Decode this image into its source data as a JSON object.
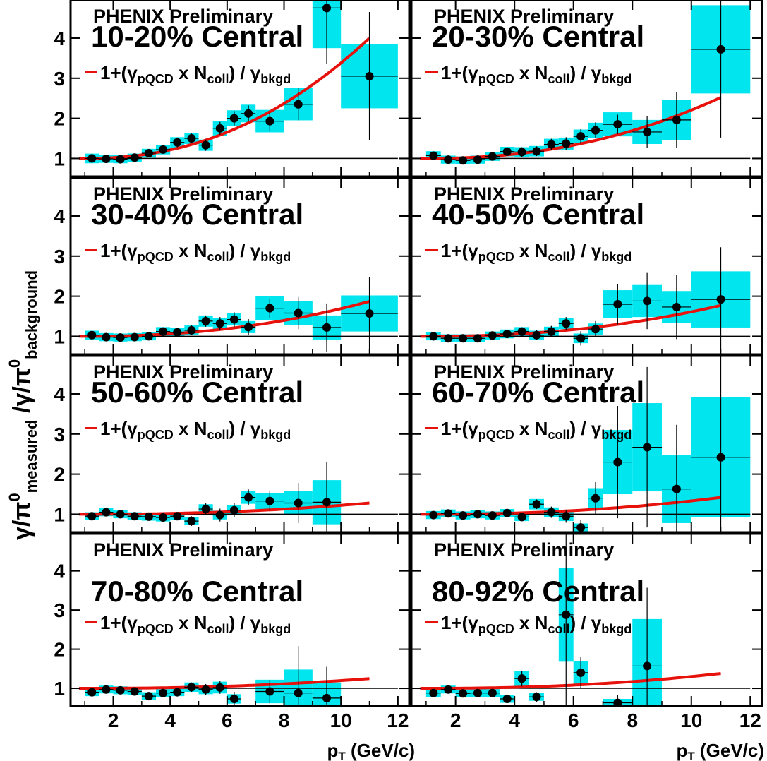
{
  "colors": {
    "syst_box": "#00e5ee",
    "curve": "#e8120c",
    "points": "#000000",
    "axis": "#000000"
  },
  "chart_data": {
    "type": "scatter",
    "layout": "grid 4 rows x 2 columns, shared axes",
    "ylabel": "γ/π⁰ measured / γ/π⁰ background",
    "xlabel": "p_T (GeV/c)",
    "xlim": [
      0.5,
      12.4
    ],
    "ylim": [
      0.55,
      4.95
    ],
    "xticks": [
      2,
      4,
      6,
      8,
      10,
      12
    ],
    "yticks": [
      1,
      2,
      3,
      4
    ],
    "reference_line": 1,
    "panel_header": "PHENIX Preliminary",
    "legend_label": "1+(γpQCD x Ncoll) / γbkgd",
    "panels": [
      {
        "centrality": "10-20% Central",
        "fit_at_11": 4.0,
        "points": [
          [
            1.25,
            1.0,
            0.05,
            0.12
          ],
          [
            1.75,
            0.99,
            0.05,
            0.1
          ],
          [
            2.25,
            0.98,
            0.05,
            0.1
          ],
          [
            2.75,
            1.02,
            0.05,
            0.1
          ],
          [
            3.25,
            1.13,
            0.05,
            0.11
          ],
          [
            3.75,
            1.22,
            0.05,
            0.12
          ],
          [
            4.25,
            1.4,
            0.06,
            0.13
          ],
          [
            4.75,
            1.5,
            0.06,
            0.14
          ],
          [
            5.25,
            1.33,
            0.07,
            0.14
          ],
          [
            5.75,
            1.75,
            0.08,
            0.18
          ],
          [
            6.25,
            2.0,
            0.09,
            0.2
          ],
          [
            6.75,
            2.12,
            0.1,
            0.22
          ],
          [
            7.5,
            1.93,
            0.12,
            0.28
          ],
          [
            8.5,
            2.35,
            0.2,
            0.4
          ],
          [
            9.5,
            4.75,
            0.7,
            1.0
          ],
          [
            11.0,
            3.05,
            0.8,
            0.8
          ]
        ]
      },
      {
        "centrality": "20-30% Central",
        "fit_at_11": 2.52,
        "points": [
          [
            1.25,
            1.07,
            0.05,
            0.11
          ],
          [
            1.75,
            0.97,
            0.05,
            0.1
          ],
          [
            2.25,
            0.95,
            0.05,
            0.1
          ],
          [
            2.75,
            0.97,
            0.05,
            0.1
          ],
          [
            3.25,
            1.05,
            0.05,
            0.11
          ],
          [
            3.75,
            1.17,
            0.05,
            0.12
          ],
          [
            4.25,
            1.16,
            0.06,
            0.12
          ],
          [
            4.75,
            1.18,
            0.06,
            0.13
          ],
          [
            5.25,
            1.35,
            0.07,
            0.14
          ],
          [
            5.75,
            1.37,
            0.08,
            0.15
          ],
          [
            6.25,
            1.55,
            0.09,
            0.17
          ],
          [
            6.75,
            1.7,
            0.1,
            0.19
          ],
          [
            7.5,
            1.85,
            0.12,
            0.3
          ],
          [
            8.5,
            1.66,
            0.2,
            0.3
          ],
          [
            9.5,
            1.96,
            0.35,
            0.5
          ],
          [
            11.0,
            3.72,
            1.1,
            1.1
          ]
        ]
      },
      {
        "centrality": "30-40% Central",
        "fit_at_11": 1.87,
        "points": [
          [
            1.25,
            1.03,
            0.05,
            0.11
          ],
          [
            1.75,
            0.98,
            0.05,
            0.1
          ],
          [
            2.25,
            0.97,
            0.05,
            0.1
          ],
          [
            2.75,
            0.98,
            0.05,
            0.1
          ],
          [
            3.25,
            1.0,
            0.05,
            0.1
          ],
          [
            3.75,
            1.12,
            0.05,
            0.11
          ],
          [
            4.25,
            1.1,
            0.05,
            0.11
          ],
          [
            4.75,
            1.15,
            0.06,
            0.12
          ],
          [
            5.25,
            1.38,
            0.07,
            0.14
          ],
          [
            5.75,
            1.32,
            0.08,
            0.14
          ],
          [
            6.25,
            1.42,
            0.09,
            0.15
          ],
          [
            6.75,
            1.23,
            0.1,
            0.15
          ],
          [
            7.5,
            1.7,
            0.12,
            0.3
          ],
          [
            8.5,
            1.58,
            0.2,
            0.3
          ],
          [
            9.5,
            1.22,
            0.3,
            0.3
          ],
          [
            11.0,
            1.57,
            0.45,
            0.45
          ]
        ]
      },
      {
        "centrality": "40-50% Central",
        "fit_at_11": 1.77,
        "points": [
          [
            1.25,
            1.0,
            0.05,
            0.1
          ],
          [
            1.75,
            0.95,
            0.05,
            0.1
          ],
          [
            2.25,
            0.95,
            0.05,
            0.1
          ],
          [
            2.75,
            0.95,
            0.05,
            0.1
          ],
          [
            3.25,
            1.02,
            0.05,
            0.1
          ],
          [
            3.75,
            1.06,
            0.05,
            0.11
          ],
          [
            4.25,
            1.12,
            0.05,
            0.11
          ],
          [
            4.75,
            1.03,
            0.06,
            0.11
          ],
          [
            5.25,
            1.12,
            0.07,
            0.12
          ],
          [
            5.75,
            1.32,
            0.08,
            0.14
          ],
          [
            6.25,
            0.95,
            0.09,
            0.12
          ],
          [
            6.75,
            1.18,
            0.1,
            0.14
          ],
          [
            7.5,
            1.8,
            0.25,
            0.35
          ],
          [
            8.5,
            1.88,
            0.35,
            0.4
          ],
          [
            9.5,
            1.73,
            0.4,
            0.4
          ],
          [
            11.0,
            1.92,
            0.65,
            0.7
          ]
        ]
      },
      {
        "centrality": "50-60% Central",
        "fit_at_11": 1.28,
        "points": [
          [
            1.25,
            0.95,
            0.05,
            0.1
          ],
          [
            1.75,
            1.05,
            0.05,
            0.1
          ],
          [
            2.25,
            1.0,
            0.05,
            0.1
          ],
          [
            2.75,
            0.95,
            0.05,
            0.1
          ],
          [
            3.25,
            0.94,
            0.05,
            0.1
          ],
          [
            3.75,
            0.92,
            0.05,
            0.1
          ],
          [
            4.25,
            0.95,
            0.05,
            0.1
          ],
          [
            4.75,
            0.83,
            0.06,
            0.1
          ],
          [
            5.25,
            1.13,
            0.07,
            0.12
          ],
          [
            5.75,
            0.98,
            0.08,
            0.11
          ],
          [
            6.25,
            1.1,
            0.09,
            0.12
          ],
          [
            6.75,
            1.42,
            0.1,
            0.16
          ],
          [
            7.5,
            1.33,
            0.12,
            0.2
          ],
          [
            8.5,
            1.28,
            0.25,
            0.3
          ],
          [
            9.5,
            1.3,
            0.5,
            0.55
          ],
          [
            11.0,
            null,
            0,
            0
          ]
        ]
      },
      {
        "centrality": "60-70% Central",
        "fit_at_11": 1.42,
        "points": [
          [
            1.25,
            0.98,
            0.05,
            0.1
          ],
          [
            1.75,
            1.02,
            0.05,
            0.1
          ],
          [
            2.25,
            0.97,
            0.05,
            0.1
          ],
          [
            2.75,
            1.0,
            0.05,
            0.1
          ],
          [
            3.25,
            0.97,
            0.05,
            0.1
          ],
          [
            3.75,
            1.03,
            0.05,
            0.1
          ],
          [
            4.25,
            0.93,
            0.05,
            0.1
          ],
          [
            4.75,
            1.25,
            0.06,
            0.13
          ],
          [
            5.25,
            1.05,
            0.07,
            0.12
          ],
          [
            5.75,
            0.95,
            0.08,
            0.12
          ],
          [
            6.25,
            0.67,
            0.09,
            0.1
          ],
          [
            6.75,
            1.4,
            0.2,
            0.25
          ],
          [
            7.5,
            2.3,
            0.7,
            0.8
          ],
          [
            8.5,
            2.67,
            1.0,
            1.1
          ],
          [
            9.5,
            1.63,
            0.8,
            0.85
          ],
          [
            11.0,
            2.42,
            1.5,
            1.5
          ]
        ]
      },
      {
        "centrality": "70-80% Central",
        "fit_at_11": 1.25,
        "points": [
          [
            1.25,
            0.9,
            0.05,
            0.1
          ],
          [
            1.75,
            0.97,
            0.05,
            0.1
          ],
          [
            2.25,
            0.95,
            0.05,
            0.1
          ],
          [
            2.75,
            0.92,
            0.05,
            0.1
          ],
          [
            3.25,
            0.8,
            0.05,
            0.1
          ],
          [
            3.75,
            0.88,
            0.05,
            0.1
          ],
          [
            4.25,
            0.9,
            0.05,
            0.1
          ],
          [
            4.75,
            1.03,
            0.06,
            0.12
          ],
          [
            5.25,
            0.97,
            0.07,
            0.12
          ],
          [
            5.75,
            1.02,
            0.08,
            0.15
          ],
          [
            6.25,
            0.73,
            0.09,
            0.12
          ],
          [
            6.75,
            null,
            0,
            0
          ],
          [
            7.5,
            0.92,
            0.15,
            0.3
          ],
          [
            8.5,
            0.88,
            0.6,
            0.6
          ],
          [
            9.5,
            0.75,
            0.4,
            0.4
          ],
          [
            11.0,
            null,
            0,
            0
          ]
        ]
      },
      {
        "centrality": "80-92% Central",
        "fit_at_11": 1.38,
        "points": [
          [
            1.25,
            0.88,
            0.05,
            0.1
          ],
          [
            1.75,
            0.97,
            0.05,
            0.1
          ],
          [
            2.25,
            0.87,
            0.05,
            0.1
          ],
          [
            2.75,
            0.88,
            0.05,
            0.1
          ],
          [
            3.25,
            0.88,
            0.05,
            0.1
          ],
          [
            3.75,
            0.73,
            0.05,
            0.1
          ],
          [
            4.25,
            1.25,
            0.1,
            0.2
          ],
          [
            4.75,
            0.78,
            0.06,
            0.1
          ],
          [
            5.25,
            null,
            0,
            0
          ],
          [
            5.75,
            2.88,
            1.2,
            1.2
          ],
          [
            6.25,
            1.4,
            0.2,
            0.3
          ],
          [
            6.75,
            null,
            0,
            0
          ],
          [
            7.5,
            0.63,
            0.1,
            0.1
          ],
          [
            8.5,
            1.57,
            1.0,
            1.2
          ],
          [
            9.5,
            null,
            0,
            0
          ],
          [
            11.0,
            null,
            0,
            0
          ]
        ]
      }
    ]
  }
}
